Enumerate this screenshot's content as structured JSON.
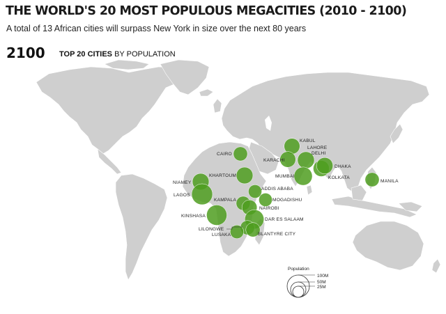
{
  "header": {
    "title": "THE WORLD'S 20 MOST POPULOUS MEGACITIES (2010 - 2100)",
    "subtitle": "A total of 13 African cities will surpass New York in size over the next 80 years",
    "year": "2100",
    "rank_bold": "TOP 20 CITIES",
    "rank_rest": " BY POPULATION"
  },
  "colors": {
    "land": "#cfcfcf",
    "city_fill": "#4f9e20",
    "background": "#ffffff"
  },
  "cities": [
    {
      "key": "lagos",
      "name": "LAGOS",
      "population_m": 88
    },
    {
      "key": "kinshasa",
      "name": "KINSHASA",
      "population_m": 83
    },
    {
      "key": "dar_es_salaam",
      "name": "DAR ES SALAAM",
      "population_m": 74
    },
    {
      "key": "mumbai",
      "name": "MUMBAI",
      "population_m": 67
    },
    {
      "key": "delhi",
      "name": "DELHI",
      "population_m": 57
    },
    {
      "key": "khartoum",
      "name": "KHARTOUM",
      "population_m": 56
    },
    {
      "key": "niamey",
      "name": "NIAMEY",
      "population_m": 56
    },
    {
      "key": "dhaka",
      "name": "DHAKA",
      "population_m": 54
    },
    {
      "key": "kolkata",
      "name": "KOLKATA",
      "population_m": 52
    },
    {
      "key": "kabul",
      "name": "KABUL",
      "population_m": 50
    },
    {
      "key": "karachi",
      "name": "KARACHI",
      "population_m": 50
    },
    {
      "key": "nairobi",
      "name": "NAIROBI",
      "population_m": 46
    },
    {
      "key": "lilongwe",
      "name": "LILONGWE",
      "population_m": 41
    },
    {
      "key": "blantyre",
      "name": "BLANTYRE CITY",
      "population_m": 41
    },
    {
      "key": "cairo",
      "name": "CAIRO",
      "population_m": 40
    },
    {
      "key": "kampala",
      "name": "KAMPALA",
      "population_m": 40
    },
    {
      "key": "manila",
      "name": "MANILA",
      "population_m": 40
    },
    {
      "key": "lusaka",
      "name": "LUSAKA",
      "population_m": 37
    },
    {
      "key": "mogadishu",
      "name": "MOGADISHU",
      "population_m": 36
    },
    {
      "key": "addis_ababa",
      "name": "ADDIS ABABA",
      "population_m": 36
    }
  ],
  "legend": {
    "title": "Population",
    "entries": [
      {
        "label": "100M",
        "value_m": 100
      },
      {
        "label": "50M",
        "value_m": 50
      },
      {
        "label": "25M",
        "value_m": 25
      }
    ]
  }
}
